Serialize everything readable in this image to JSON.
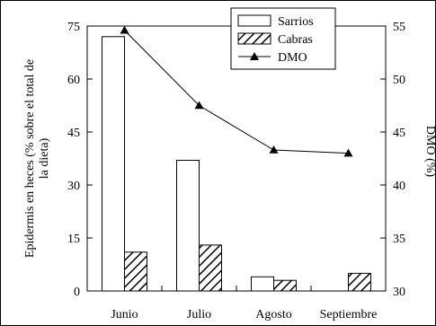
{
  "chart_data": {
    "type": "bar",
    "categories": [
      "Junio",
      "Julio",
      "Agosto",
      "Septiembre"
    ],
    "series": [
      {
        "name": "Sarrios",
        "kind": "bar",
        "fill": "white",
        "values": [
          72,
          37,
          4,
          0
        ]
      },
      {
        "name": "Cabras",
        "kind": "bar",
        "fill": "hatched",
        "values": [
          11,
          13,
          3,
          5
        ]
      },
      {
        "name": "DMO",
        "kind": "line",
        "marker": "triangle",
        "axis": "right",
        "values": [
          54.6,
          47.5,
          43.3,
          43.0
        ]
      }
    ],
    "ylabel_left": "Epidermis en heces (% sobre el total de la dieta)",
    "ylabel_left_lines": [
      "Epidermis en heces (% sobre el total de",
      "la dieta)"
    ],
    "ylabel_right": "DMO (%)",
    "ylim_left": [
      0,
      75
    ],
    "yticks_left": [
      "0",
      "15",
      "30",
      "45",
      "60",
      "75"
    ],
    "ylim_right": [
      30,
      55
    ],
    "yticks_right": [
      "30",
      "35",
      "40",
      "45",
      "50",
      "55"
    ],
    "legend_position": "top-right",
    "grid": false
  },
  "colors": {
    "line": "#000000",
    "bar_outline": "#000000",
    "background": "#ffffff"
  }
}
